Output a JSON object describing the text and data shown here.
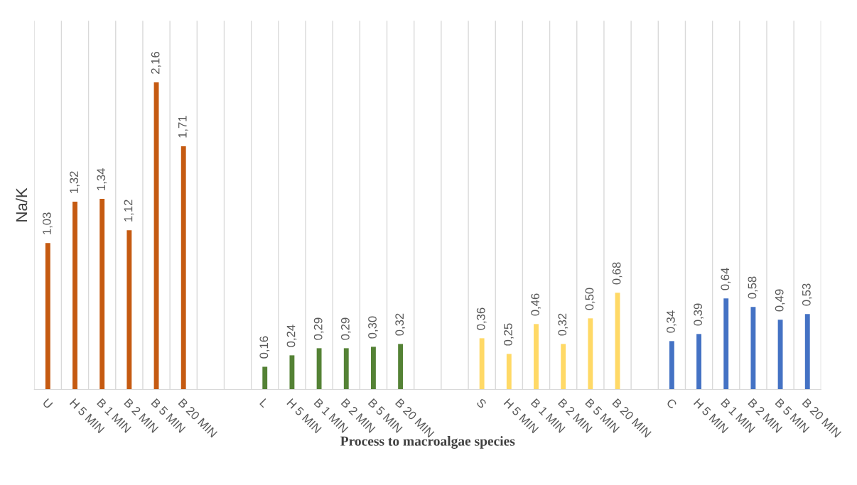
{
  "chart_data": {
    "type": "bar",
    "xlabel": "Process to macroalgae species",
    "ylabel": "Na/K",
    "categories": [
      "U",
      "H 5 MIN",
      "B 1 MIN",
      "B 2 MIN",
      "B 5 MIN",
      "B 20 MIN",
      null,
      null,
      "L",
      "H 5 MIN",
      "B 1 MIN",
      "B 2 MIN",
      "B 5 MIN",
      "B 20 MIN",
      null,
      null,
      "S",
      "H 5 MIN",
      "B 1 MIN",
      "B 2 MIN",
      "B 5 MIN",
      "B 20 MIN",
      null,
      "C",
      "H 5 MIN",
      "B 1 MIN",
      "B 2 MIN",
      "B 5 MIN",
      "B 20 MIN"
    ],
    "values": [
      1.03,
      1.32,
      1.34,
      1.12,
      2.16,
      1.71,
      null,
      null,
      0.16,
      0.24,
      0.29,
      0.29,
      0.3,
      0.32,
      null,
      null,
      0.36,
      0.25,
      0.46,
      0.32,
      0.5,
      0.68,
      null,
      0.34,
      0.39,
      0.64,
      0.58,
      0.49,
      0.53
    ],
    "value_labels": [
      "1,03",
      "1,32",
      "1,34",
      "1,12",
      "2,16",
      "1,71",
      null,
      null,
      "0,16",
      "0,24",
      "0,29",
      "0,29",
      "0,30",
      "0,32",
      null,
      null,
      "0,36",
      "0,25",
      "0,46",
      "0,32",
      "0,50",
      "0,68",
      null,
      "0,34",
      "0,39",
      "0,64",
      "0,58",
      "0,49",
      "0,53"
    ],
    "colors": [
      "#c55a11",
      "#c55a11",
      "#c55a11",
      "#c55a11",
      "#c55a11",
      "#c55a11",
      null,
      null,
      "#548235",
      "#548235",
      "#548235",
      "#548235",
      "#548235",
      "#548235",
      null,
      null,
      "#ffd966",
      "#ffd966",
      "#ffd966",
      "#ffd966",
      "#ffd966",
      "#ffd966",
      null,
      "#4472c4",
      "#4472c4",
      "#4472c4",
      "#4472c4",
      "#4472c4",
      "#4472c4"
    ],
    "grid": "x",
    "tick_labels": "x",
    "legend": false
  }
}
